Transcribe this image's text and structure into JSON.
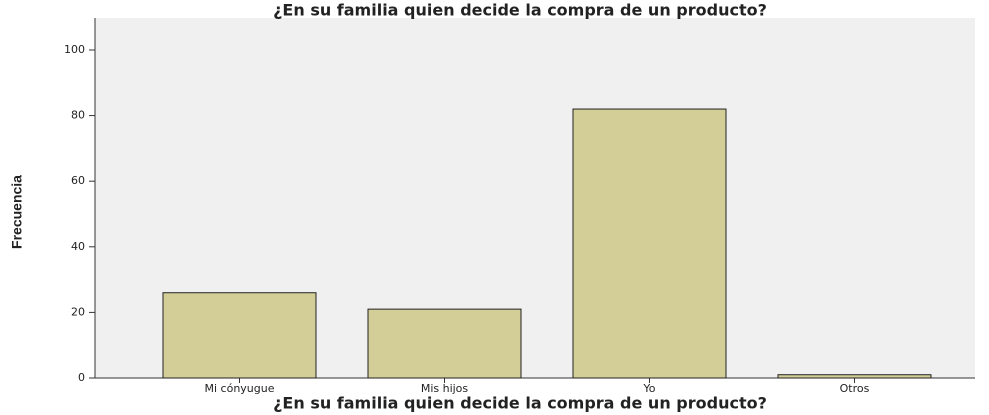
{
  "chart_data": {
    "type": "bar",
    "title": "¿En su familia quien decide la compra de un producto?",
    "x_label": "¿En su familia quien decide la compra de un producto?",
    "y_label": "Frecuencia",
    "categories": [
      "Mi cónyugue",
      "Mis hijos",
      "Yo",
      "Otros"
    ],
    "values": [
      26,
      21,
      82,
      1
    ],
    "color": "#d3ce98",
    "ylim": [
      0,
      100
    ],
    "yticks": [
      0,
      20,
      40,
      60,
      80,
      100
    ],
    "grid": false
  }
}
